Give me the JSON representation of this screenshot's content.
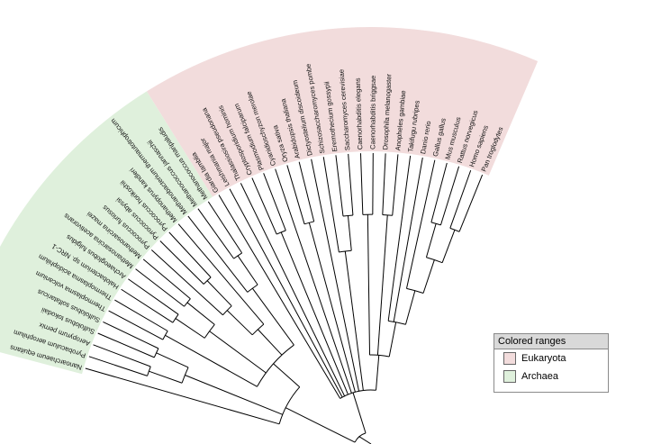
{
  "tree": {
    "title": "",
    "clades": [
      {
        "name": "Eukaryota",
        "color": "#f2dcdc"
      },
      {
        "name": "Archaea",
        "color": "#dff0dc"
      }
    ],
    "leaves": [
      {
        "name": "Nanoarchaeum equitans",
        "clade": "Archaea"
      },
      {
        "name": "Pyrobaculum aerophilum",
        "clade": "Archaea"
      },
      {
        "name": "Aeropyrum pernix",
        "clade": "Archaea"
      },
      {
        "name": "Sulfolobus tokodaii",
        "clade": "Archaea"
      },
      {
        "name": "Sulfolobus solfataricus",
        "clade": "Archaea"
      },
      {
        "name": "Thermoplasma volcanium",
        "clade": "Archaea"
      },
      {
        "name": "Thermoplasma acidophilum",
        "clade": "Archaea"
      },
      {
        "name": "Halobacterium sp. NRC-1",
        "clade": "Archaea"
      },
      {
        "name": "Archaeoglobus fulgidus",
        "clade": "Archaea"
      },
      {
        "name": "Methanosarcina acetivorans",
        "clade": "Archaea"
      },
      {
        "name": "Methanosarcina mazei",
        "clade": "Archaea"
      },
      {
        "name": "Pyrococcus furiosus",
        "clade": "Archaea"
      },
      {
        "name": "Pyrococcus abyssi",
        "clade": "Archaea"
      },
      {
        "name": "Pyrococcus horikoshii",
        "clade": "Archaea"
      },
      {
        "name": "Methanopyrus kandleri",
        "clade": "Archaea"
      },
      {
        "name": "Methanobacterium thermautotrophicum",
        "clade": "Archaea"
      },
      {
        "name": "Methanococcus jannaschii",
        "clade": "Archaea"
      },
      {
        "name": "Methanococcus maripaludis",
        "clade": "Archaea"
      },
      {
        "name": "Giardia lamblia",
        "clade": "Eukaryota"
      },
      {
        "name": "Leishmania major",
        "clade": "Eukaryota"
      },
      {
        "name": "Thalassiosira pseudonana",
        "clade": "Eukaryota"
      },
      {
        "name": "Cryptosporidium hominis",
        "clade": "Eukaryota"
      },
      {
        "name": "Plasmodium falciparum",
        "clade": "Eukaryota"
      },
      {
        "name": "Cyanidioschyzon merolae",
        "clade": "Eukaryota"
      },
      {
        "name": "Oryza sativa",
        "clade": "Eukaryota"
      },
      {
        "name": "Arabidopsis thaliana",
        "clade": "Eukaryota"
      },
      {
        "name": "Dictyostelium discoideum",
        "clade": "Eukaryota"
      },
      {
        "name": "Schizosaccharomyces pombe",
        "clade": "Eukaryota"
      },
      {
        "name": "Eremothecium gossypii",
        "clade": "Eukaryota"
      },
      {
        "name": "Saccharomyces cerevisiae",
        "clade": "Eukaryota"
      },
      {
        "name": "Caenorhabditis elegans",
        "clade": "Eukaryota"
      },
      {
        "name": "Caenorhabditis briggsae",
        "clade": "Eukaryota"
      },
      {
        "name": "Drosophila melanogaster",
        "clade": "Eukaryota"
      },
      {
        "name": "Anopheles gambiae",
        "clade": "Eukaryota"
      },
      {
        "name": "Takifugu rubripes",
        "clade": "Eukaryota"
      },
      {
        "name": "Danio rerio",
        "clade": "Eukaryota"
      },
      {
        "name": "Gallus gallus",
        "clade": "Eukaryota"
      },
      {
        "name": "Mus musculus",
        "clade": "Eukaryota"
      },
      {
        "name": "Rattus norvegicus",
        "clade": "Eukaryota"
      },
      {
        "name": "Homo sapiens",
        "clade": "Eukaryota"
      },
      {
        "name": "Pan troglodytes",
        "clade": "Eukaryota"
      }
    ]
  },
  "legend": {
    "title": "Colored ranges",
    "items": [
      {
        "label": "Eukaryota",
        "color": "#f2dcdc"
      },
      {
        "label": "Archaea",
        "color": "#dff0dc"
      }
    ]
  }
}
